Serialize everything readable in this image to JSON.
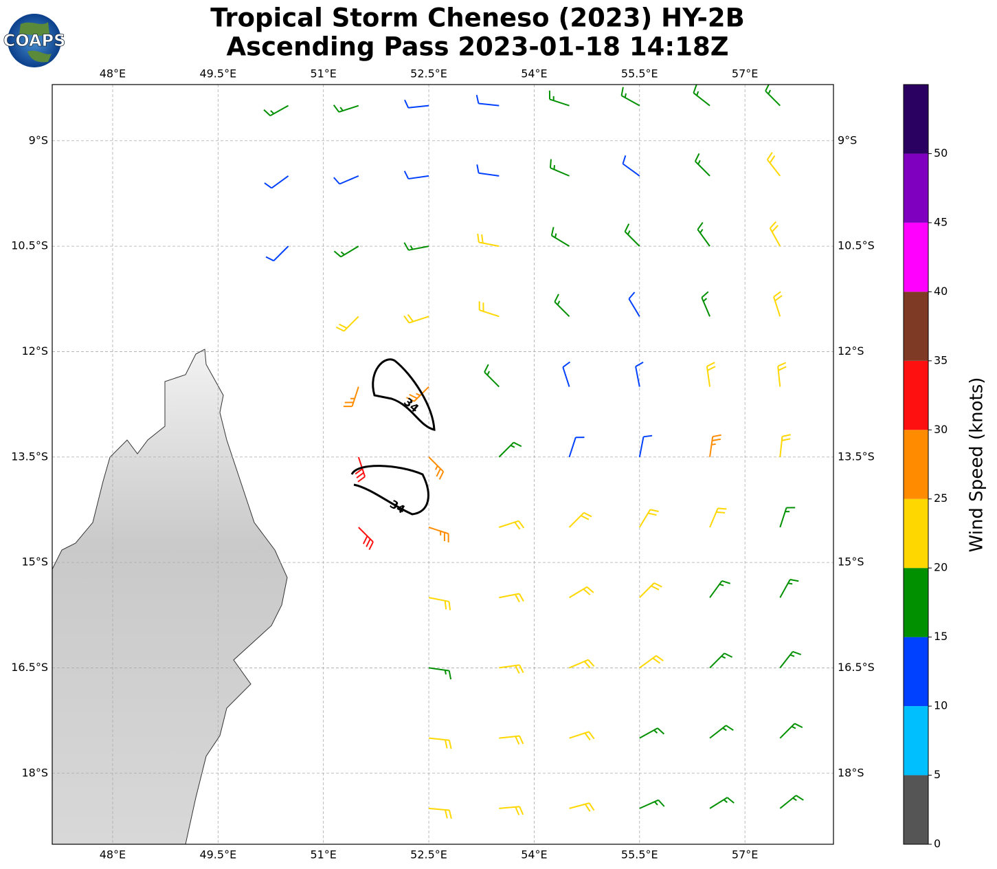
{
  "chart_data": {
    "type": "wind_barbs",
    "title": "Tropical Storm Cheneso (2023) HY-2B",
    "subtitle": "Ascending Pass 2023-01-18 14:18Z",
    "logo": "COAPS",
    "xlim": [
      47.14,
      58.26
    ],
    "ylim": [
      -19.01,
      -8.2
    ],
    "xticks": [
      {
        "value": 48,
        "label": "48°E"
      },
      {
        "value": 49.5,
        "label": "49.5°E"
      },
      {
        "value": 51,
        "label": "51°E"
      },
      {
        "value": 52.5,
        "label": "52.5°E"
      },
      {
        "value": 54,
        "label": "54°E"
      },
      {
        "value": 55.5,
        "label": "55.5°E"
      },
      {
        "value": 57,
        "label": "57°E"
      }
    ],
    "yticks": [
      {
        "value": -9,
        "label": "9°S"
      },
      {
        "value": -10.5,
        "label": "10.5°S"
      },
      {
        "value": -12,
        "label": "12°S"
      },
      {
        "value": -13.5,
        "label": "13.5°S"
      },
      {
        "value": -15,
        "label": "15°S"
      },
      {
        "value": -16.5,
        "label": "16.5°S"
      },
      {
        "value": -18,
        "label": "18°S"
      }
    ],
    "grid": true,
    "contour_level": 34,
    "barbs": {
      "lon": [
        50.5,
        51.5,
        52.5,
        53.5,
        54.5,
        55.5,
        56.5,
        57.5
      ],
      "lat": [
        -8.5,
        -9.5,
        -10.5,
        -11.5,
        -12.5,
        -13.5,
        -14.5,
        -15.5,
        -16.5,
        -17.5,
        -18.5
      ],
      "speed": [
        [
          17,
          17,
          12,
          12,
          15,
          15,
          17,
          17
        ],
        [
          12,
          12,
          12,
          12,
          15,
          12,
          17,
          22
        ],
        [
          12,
          17,
          17,
          22,
          17,
          15,
          17,
          22
        ],
        [
          null,
          22,
          22,
          22,
          15,
          12,
          17,
          22
        ],
        [
          null,
          27,
          27,
          17,
          12,
          12,
          22,
          22
        ],
        [
          null,
          32,
          27,
          17,
          12,
          12,
          27,
          22
        ],
        [
          null,
          32,
          27,
          22,
          22,
          22,
          22,
          17
        ],
        [
          null,
          null,
          22,
          22,
          22,
          22,
          17,
          17
        ],
        [
          null,
          null,
          17,
          22,
          22,
          22,
          17,
          17
        ],
        [
          null,
          null,
          22,
          22,
          22,
          17,
          17,
          17
        ],
        [
          null,
          null,
          22,
          22,
          22,
          17,
          17,
          17
        ]
      ],
      "direction": [
        [
          241,
          252,
          264,
          276,
          288,
          299,
          308,
          315
        ],
        [
          234,
          247,
          262,
          278,
          293,
          306,
          315,
          322
        ],
        [
          225,
          239,
          259,
          281,
          301,
          315,
          324,
          331
        ],
        [
          null,
          225,
          252,
          288,
          315,
          329,
          337,
          342
        ],
        [
          null,
          198,
          225,
          315,
          342,
          349,
          352,
          354
        ],
        [
          null,
          162,
          135,
          45,
          18,
          11,
          8,
          6
        ],
        [
          null,
          135,
          108,
          72,
          45,
          31,
          23,
          18
        ],
        [
          null,
          null,
          101,
          79,
          59,
          45,
          36,
          29
        ],
        [
          null,
          null,
          98,
          82,
          67,
          54,
          45,
          38
        ],
        [
          null,
          null,
          96,
          84,
          72,
          61,
          52,
          45
        ],
        [
          null,
          null,
          95,
          85,
          75,
          66,
          58,
          51
        ]
      ]
    },
    "colorbar": {
      "label": "Wind Speed (knots)",
      "levels": [
        0,
        5,
        10,
        15,
        20,
        25,
        30,
        35,
        40,
        45,
        50,
        55
      ],
      "colors": [
        "#555555",
        "#00bfff",
        "#0040ff",
        "#009000",
        "#ffd700",
        "#ff8c00",
        "#ff1010",
        "#7f3a25",
        "#ff00ff",
        "#8000c0",
        "#2a0060"
      ],
      "ticks": [
        0,
        5,
        10,
        15,
        20,
        25,
        30,
        35,
        40,
        45,
        50
      ]
    }
  }
}
